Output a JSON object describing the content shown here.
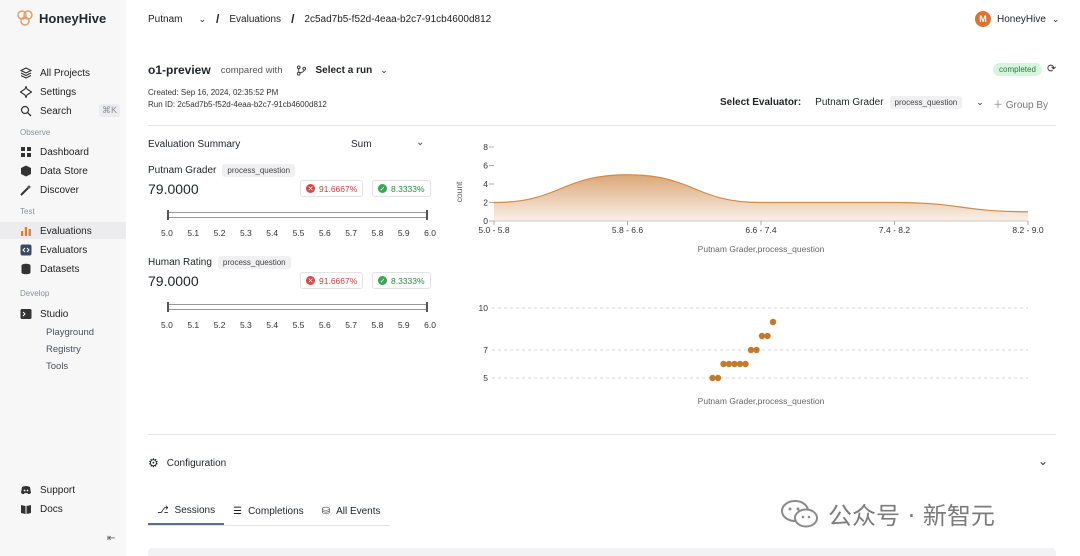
{
  "app": {
    "name": "HoneyHive"
  },
  "sidebar": {
    "top": [
      {
        "label": "All Projects",
        "icon": "layers-icon"
      },
      {
        "label": "Settings",
        "icon": "settings-icon"
      },
      {
        "label": "Search",
        "icon": "search-icon",
        "shortcut": "⌘K"
      }
    ],
    "sections": [
      {
        "title": "Observe",
        "items": [
          "Dashboard",
          "Data Store",
          "Discover"
        ]
      },
      {
        "title": "Test",
        "items": [
          "Evaluations",
          "Evaluators",
          "Datasets"
        ]
      },
      {
        "title": "Develop",
        "items": [
          "Studio"
        ],
        "subitems": [
          "Playground",
          "Registry",
          "Tools"
        ]
      }
    ],
    "bottom": [
      "Support",
      "Docs"
    ],
    "collapse": "⇤"
  },
  "header": {
    "project": "Putnam",
    "section": "Evaluations",
    "run_id": "2c5ad7b5-f52d-4eaa-b2c7-91cb4600d812",
    "user": {
      "name": "HoneyHive",
      "initial": "M"
    }
  },
  "run": {
    "name": "o1-preview",
    "compared_with": "compared with",
    "select_run": "Select a run",
    "created": "Created: Sep 16, 2024, 02:35:52 PM",
    "run_id_line": "Run ID: 2c5ad7b5-f52d-4eaa-b2c7-91cb4600d812",
    "status": "completed"
  },
  "evaluator": {
    "label": "Select Evaluator:",
    "name": "Putnam Grader",
    "tag": "process_question",
    "group_by": "Group By"
  },
  "summary": {
    "title": "Evaluation Summary",
    "aggregate": "Sum",
    "scale": [
      "5.0",
      "5.1",
      "5.2",
      "5.3",
      "5.4",
      "5.5",
      "5.6",
      "5.7",
      "5.8",
      "5.9",
      "6.0"
    ],
    "metrics": [
      {
        "name": "Putnam Grader",
        "tag": "process_question",
        "value": "79.0000",
        "fail": "91.6667%",
        "pass": "8.3333%"
      },
      {
        "name": "Human Rating",
        "tag": "process_question",
        "value": "79.0000",
        "fail": "91.6667%",
        "pass": "8.3333%"
      }
    ]
  },
  "chart_data": [
    {
      "type": "area",
      "ylabel": "count",
      "xlabel": "Putnam Grader,process_question",
      "categories": [
        "5.0 - 5.8",
        "5.8 - 6.6",
        "6.6 - 7.4",
        "7.4 - 8.2",
        "8.2 - 9.0"
      ],
      "values": [
        2,
        5,
        2,
        2,
        1
      ],
      "yticks": [
        0,
        2,
        4,
        6,
        8
      ],
      "ylim": [
        0,
        8
      ],
      "color": "#d08a4a"
    },
    {
      "type": "scatter",
      "xlabel": "Putnam Grader,process_question",
      "yticks": [
        5,
        7,
        10
      ],
      "ylim": [
        4,
        11
      ],
      "color": "#c27a2c",
      "points": [
        {
          "x": 1,
          "y": 5
        },
        {
          "x": 2,
          "y": 5
        },
        {
          "x": 3,
          "y": 6
        },
        {
          "x": 4,
          "y": 6
        },
        {
          "x": 5,
          "y": 6
        },
        {
          "x": 6,
          "y": 6
        },
        {
          "x": 7,
          "y": 6
        },
        {
          "x": 8,
          "y": 7
        },
        {
          "x": 9,
          "y": 7
        },
        {
          "x": 10,
          "y": 8
        },
        {
          "x": 11,
          "y": 8
        },
        {
          "x": 12,
          "y": 9
        }
      ]
    }
  ],
  "configuration": {
    "label": "Configuration"
  },
  "tabs": [
    "Sessions",
    "Completions",
    "All Events"
  ],
  "watermark": {
    "text": "公众号 · 新智元"
  }
}
